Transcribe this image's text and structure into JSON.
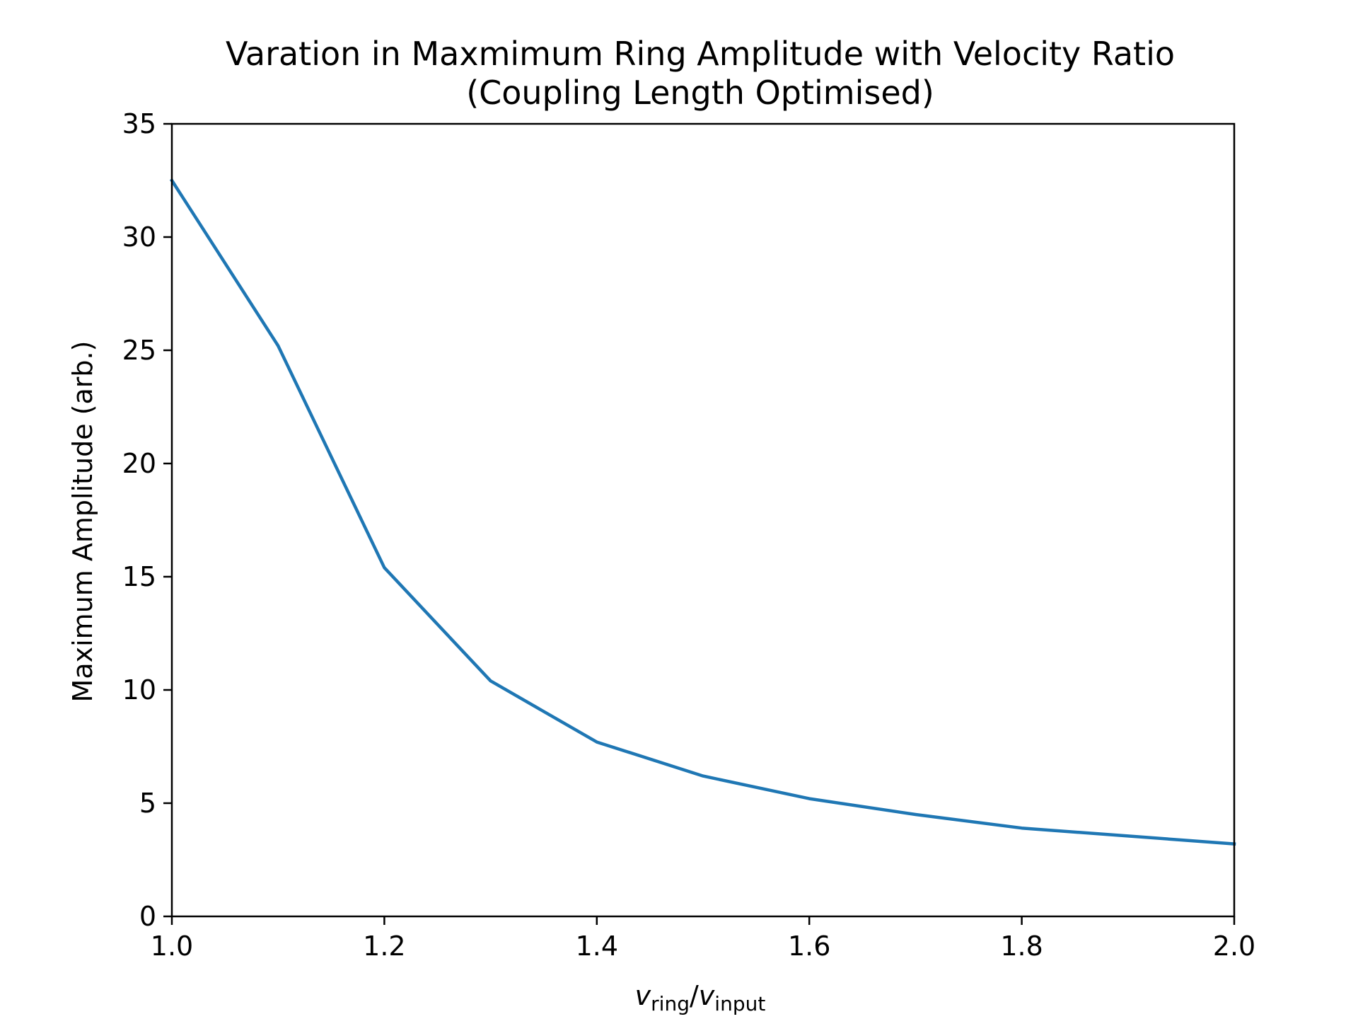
{
  "chart_data": {
    "type": "line",
    "title": "Varation in Maxmimum Ring Amplitude with Velocity Ratio",
    "subtitle": "(Coupling Length Optimised)",
    "xlabel": {
      "main": "v",
      "sub1": "ring",
      "sep": "/",
      "main2": "v",
      "sub2": "input"
    },
    "ylabel": "Maximum Amplitude (arb.)",
    "xlim": [
      1.0,
      2.0
    ],
    "ylim": [
      0,
      35
    ],
    "xticks": [
      1.0,
      1.2,
      1.4,
      1.6,
      1.8,
      2.0
    ],
    "xtick_labels": [
      "1.0",
      "1.2",
      "1.4",
      "1.6",
      "1.8",
      "2.0"
    ],
    "yticks": [
      0,
      5,
      10,
      15,
      20,
      25,
      30,
      35
    ],
    "ytick_labels": [
      "0",
      "5",
      "10",
      "15",
      "20",
      "25",
      "30",
      "35"
    ],
    "grid": false,
    "series": [
      {
        "color": "#1f77b4",
        "x": [
          1.0,
          1.1,
          1.2,
          1.3,
          1.4,
          1.5,
          1.6,
          1.7,
          1.8,
          1.9,
          2.0
        ],
        "y": [
          32.5,
          25.2,
          15.4,
          10.4,
          7.7,
          6.2,
          5.2,
          4.5,
          3.9,
          3.55,
          3.2
        ]
      }
    ]
  }
}
